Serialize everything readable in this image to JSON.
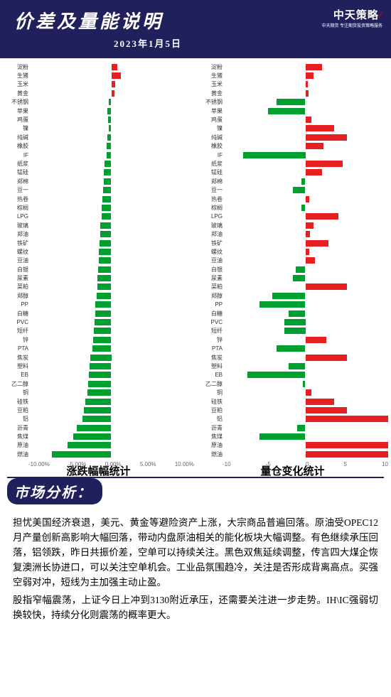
{
  "header": {
    "title": "价差及量能说明",
    "date": "2023年1月5日",
    "logo_line1": "中天策略",
    "logo_line2": "中天期货 专注期货投资策略服务"
  },
  "colors": {
    "pos": "#e62020",
    "neg": "#00a030",
    "header_bg": "#20205c"
  },
  "categories": [
    "淀粉",
    "生猪",
    "玉米",
    "黄金",
    "不锈钢",
    "苹果",
    "鸡蛋",
    "镍",
    "纯碱",
    "橡胶",
    "IF",
    "纸浆",
    "锰硅",
    "郑棉",
    "豆一",
    "热卷",
    "棕榈",
    "LPG",
    "玻璃",
    "郑油",
    "铁矿",
    "螺纹",
    "豆油",
    "白银",
    "尿素",
    "菜粕",
    "郑醇",
    "PP",
    "白糖",
    "PVC",
    "短纤",
    "锌",
    "PTA",
    "焦炭",
    "塑料",
    "EB",
    "乙二醇",
    "铜",
    "硅铁",
    "豆粕",
    "铝",
    "沥青",
    "焦煤",
    "原油",
    "燃油"
  ],
  "chart1": {
    "title": "涨跌幅幅统计",
    "label_width": 36,
    "xmin": -10,
    "xmax": 10,
    "fmt": "pct",
    "xticks": [
      "-10.00%",
      "-5.00%",
      "0.00%",
      "5.00%",
      "10.00%"
    ],
    "values": [
      0.7,
      1.2,
      0.5,
      0.4,
      -0.3,
      -0.5,
      -0.4,
      -0.3,
      -0.5,
      -0.6,
      -0.6,
      -0.8,
      -0.9,
      -0.9,
      -1.0,
      -1.1,
      -1.2,
      -1.2,
      -1.3,
      -1.3,
      -1.4,
      -1.5,
      -1.5,
      -1.6,
      -1.7,
      -1.7,
      -1.8,
      -1.9,
      -1.9,
      -2.0,
      -2.1,
      -2.2,
      -2.3,
      -2.5,
      -2.6,
      -2.7,
      -2.8,
      -2.9,
      -3.1,
      -3.3,
      -3.5,
      -4.2,
      -4.6,
      -5.3,
      -7.2
    ]
  },
  "chart2": {
    "title": "量仓变化统计",
    "label_width": 36,
    "xmin": -10,
    "xmax": 10,
    "fmt": "num",
    "xticks": [
      "-10",
      "-5",
      "0",
      "5",
      "10"
    ],
    "values": [
      2.0,
      1.0,
      0.3,
      0.4,
      -3.5,
      -4.5,
      0.7,
      3.5,
      5.0,
      2.2,
      -7.5,
      4.5,
      2.0,
      -0.5,
      -1.5,
      0.5,
      -0.5,
      4.0,
      1.0,
      0.6,
      2.8,
      0.5,
      1.2,
      -1.2,
      -1.5,
      5.0,
      -4.0,
      -5.5,
      -2.0,
      -2.5,
      -2.5,
      2.5,
      -3.5,
      5.0,
      -2.0,
      -7.0,
      -0.3,
      0.7,
      3.5,
      5.0,
      10.0,
      -1.0,
      -5.5,
      10.0,
      10.0
    ]
  },
  "analysis": {
    "section_title": "市场分析：",
    "p1": "担忧美国经济衰退，美元、黄金等避险资产上涨，大宗商品普遍回落。原油受OPEC12月产量创新高影响大幅回落，带动内盘原油相关的能化板块大幅调整。有色继续承压回落，铝领跌，昨日共振价差，空单可以持续关注。黑色双焦延续调整，传言四大煤企恢复澳洲长协进口，可以关注空单机会。工业品氛围趋冷，关注是否形成背离高点。买强空弱对冲，短线为主加强主动止盈。",
    "p2": "股指窄幅震荡，上证今日上冲到3130附近承压，还需要关注进一步走势。IH\\IC强弱切换较快，持续分化则震荡的概率更大。"
  }
}
